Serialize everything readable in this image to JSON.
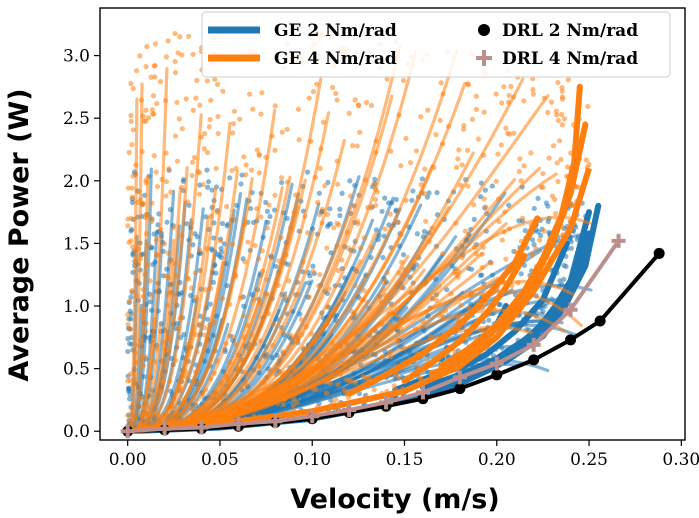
{
  "chart_data": {
    "type": "scatter",
    "title": "",
    "xlabel": "Velocity (m/s)",
    "ylabel": "Average Power (W)",
    "xlim": [
      -0.015,
      0.302
    ],
    "ylim": [
      -0.07,
      3.38
    ],
    "xticks": [
      0.0,
      0.05,
      0.1,
      0.15,
      0.2,
      0.25,
      0.3
    ],
    "xtick_labels": [
      "0.00",
      "0.05",
      "0.10",
      "0.15",
      "0.20",
      "0.25",
      "0.30"
    ],
    "yticks": [
      0.0,
      0.5,
      1.0,
      1.5,
      2.0,
      2.5,
      3.0
    ],
    "ytick_labels": [
      "0.0",
      "0.5",
      "1.0",
      "1.5",
      "2.0",
      "2.5",
      "3.0"
    ],
    "grid": false,
    "legend_position": "top-right",
    "legend": [
      {
        "label": "GE 2 Nm/rad",
        "marker": "thick-line",
        "color": "#1f77b4"
      },
      {
        "label": "GE 4 Nm/rad",
        "marker": "thick-line",
        "color": "#ff7f0e"
      },
      {
        "label": "DRL 2 Nm/rad",
        "marker": "circle",
        "color": "#000000"
      },
      {
        "label": "DRL 4 Nm/rad",
        "marker": "plus",
        "color": "#bc8f8f"
      }
    ],
    "series": [
      {
        "name": "GE 2 Nm/rad",
        "kind": "scatter-cloud",
        "color": "#1f77b4",
        "lower_envelope": [
          [
            0.0,
            0.0
          ],
          [
            0.05,
            0.03
          ],
          [
            0.1,
            0.1
          ],
          [
            0.15,
            0.24
          ],
          [
            0.18,
            0.38
          ],
          [
            0.2,
            0.52
          ],
          [
            0.22,
            0.75
          ],
          [
            0.24,
            1.1
          ],
          [
            0.25,
            1.45
          ]
        ],
        "upper_envelope": [
          [
            0.0,
            2.1
          ],
          [
            0.1,
            2.1
          ],
          [
            0.2,
            2.0
          ],
          [
            0.245,
            1.85
          ]
        ],
        "traces": [
          {
            "x": [
              0.145,
              0.158,
              0.17,
              0.18,
              0.19,
              0.2,
              0.205
            ],
            "y": [
              0.33,
              0.4,
              0.47,
              0.56,
              0.7,
              0.85,
              1.0
            ]
          },
          {
            "x": [
              0.16,
              0.18,
              0.2,
              0.22,
              0.232,
              0.244,
              0.25
            ],
            "y": [
              0.35,
              0.45,
              0.58,
              0.78,
              1.0,
              1.3,
              1.58
            ]
          },
          {
            "x": [
              0.165,
              0.185,
              0.205,
              0.225,
              0.237,
              0.248,
              0.255
            ],
            "y": [
              0.33,
              0.43,
              0.56,
              0.76,
              1.0,
              1.32,
              1.8
            ]
          },
          {
            "x": [
              0.17,
              0.19,
              0.21,
              0.228,
              0.24,
              0.25
            ],
            "y": [
              0.38,
              0.5,
              0.66,
              0.9,
              1.2,
              1.75
            ]
          },
          {
            "x": [
              0.18,
              0.195,
              0.21,
              0.225,
              0.238
            ],
            "y": [
              0.5,
              0.62,
              0.8,
              1.05,
              1.5
            ]
          }
        ]
      },
      {
        "name": "GE 4 Nm/rad",
        "kind": "scatter-cloud",
        "color": "#ff7f0e",
        "lower_envelope": [
          [
            0.0,
            0.0
          ],
          [
            0.05,
            0.06
          ],
          [
            0.1,
            0.16
          ],
          [
            0.15,
            0.32
          ],
          [
            0.18,
            0.52
          ],
          [
            0.2,
            0.75
          ],
          [
            0.22,
            1.12
          ],
          [
            0.24,
            1.62
          ],
          [
            0.25,
            2.1
          ]
        ],
        "upper_envelope": [
          [
            0.0,
            3.2
          ],
          [
            0.06,
            3.2
          ],
          [
            0.1,
            3.2
          ],
          [
            0.2,
            3.0
          ],
          [
            0.245,
            2.8
          ]
        ],
        "traces": [
          {
            "x": [
              0.15,
              0.165,
              0.18,
              0.195,
              0.205,
              0.215
            ],
            "y": [
              0.4,
              0.55,
              0.72,
              0.95,
              1.15,
              1.4
            ]
          },
          {
            "x": [
              0.165,
              0.18,
              0.195,
              0.21,
              0.22,
              0.23,
              0.24,
              0.248
            ],
            "y": [
              0.45,
              0.58,
              0.75,
              0.98,
              1.2,
              1.5,
              1.9,
              2.45
            ]
          },
          {
            "x": [
              0.17,
              0.185,
              0.2,
              0.215,
              0.225,
              0.235,
              0.242,
              0.245
            ],
            "y": [
              0.52,
              0.66,
              0.85,
              1.12,
              1.38,
              1.72,
              2.15,
              2.75
            ]
          },
          {
            "x": [
              0.12,
              0.14,
              0.16,
              0.18,
              0.195,
              0.21,
              0.222
            ],
            "y": [
              0.3,
              0.45,
              0.62,
              0.85,
              1.08,
              1.35,
              1.7
            ]
          }
        ]
      },
      {
        "name": "DRL 2 Nm/rad",
        "kind": "line-markers",
        "color": "#000000",
        "marker": "circle",
        "x": [
          0.0,
          0.02,
          0.04,
          0.06,
          0.08,
          0.1,
          0.12,
          0.14,
          0.16,
          0.18,
          0.2,
          0.22,
          0.24,
          0.256,
          0.288
        ],
        "y": [
          0.0,
          0.01,
          0.02,
          0.04,
          0.07,
          0.1,
          0.15,
          0.2,
          0.26,
          0.34,
          0.45,
          0.57,
          0.73,
          0.88,
          1.42
        ]
      },
      {
        "name": "DRL 4 Nm/rad",
        "kind": "line-markers",
        "color": "#bc8f8f",
        "marker": "plus",
        "x": [
          0.0,
          0.02,
          0.04,
          0.06,
          0.08,
          0.1,
          0.12,
          0.14,
          0.16,
          0.18,
          0.2,
          0.22,
          0.24,
          0.266
        ],
        "y": [
          0.0,
          0.02,
          0.03,
          0.06,
          0.08,
          0.12,
          0.17,
          0.23,
          0.31,
          0.43,
          0.54,
          0.69,
          0.97,
          1.52
        ]
      }
    ]
  }
}
